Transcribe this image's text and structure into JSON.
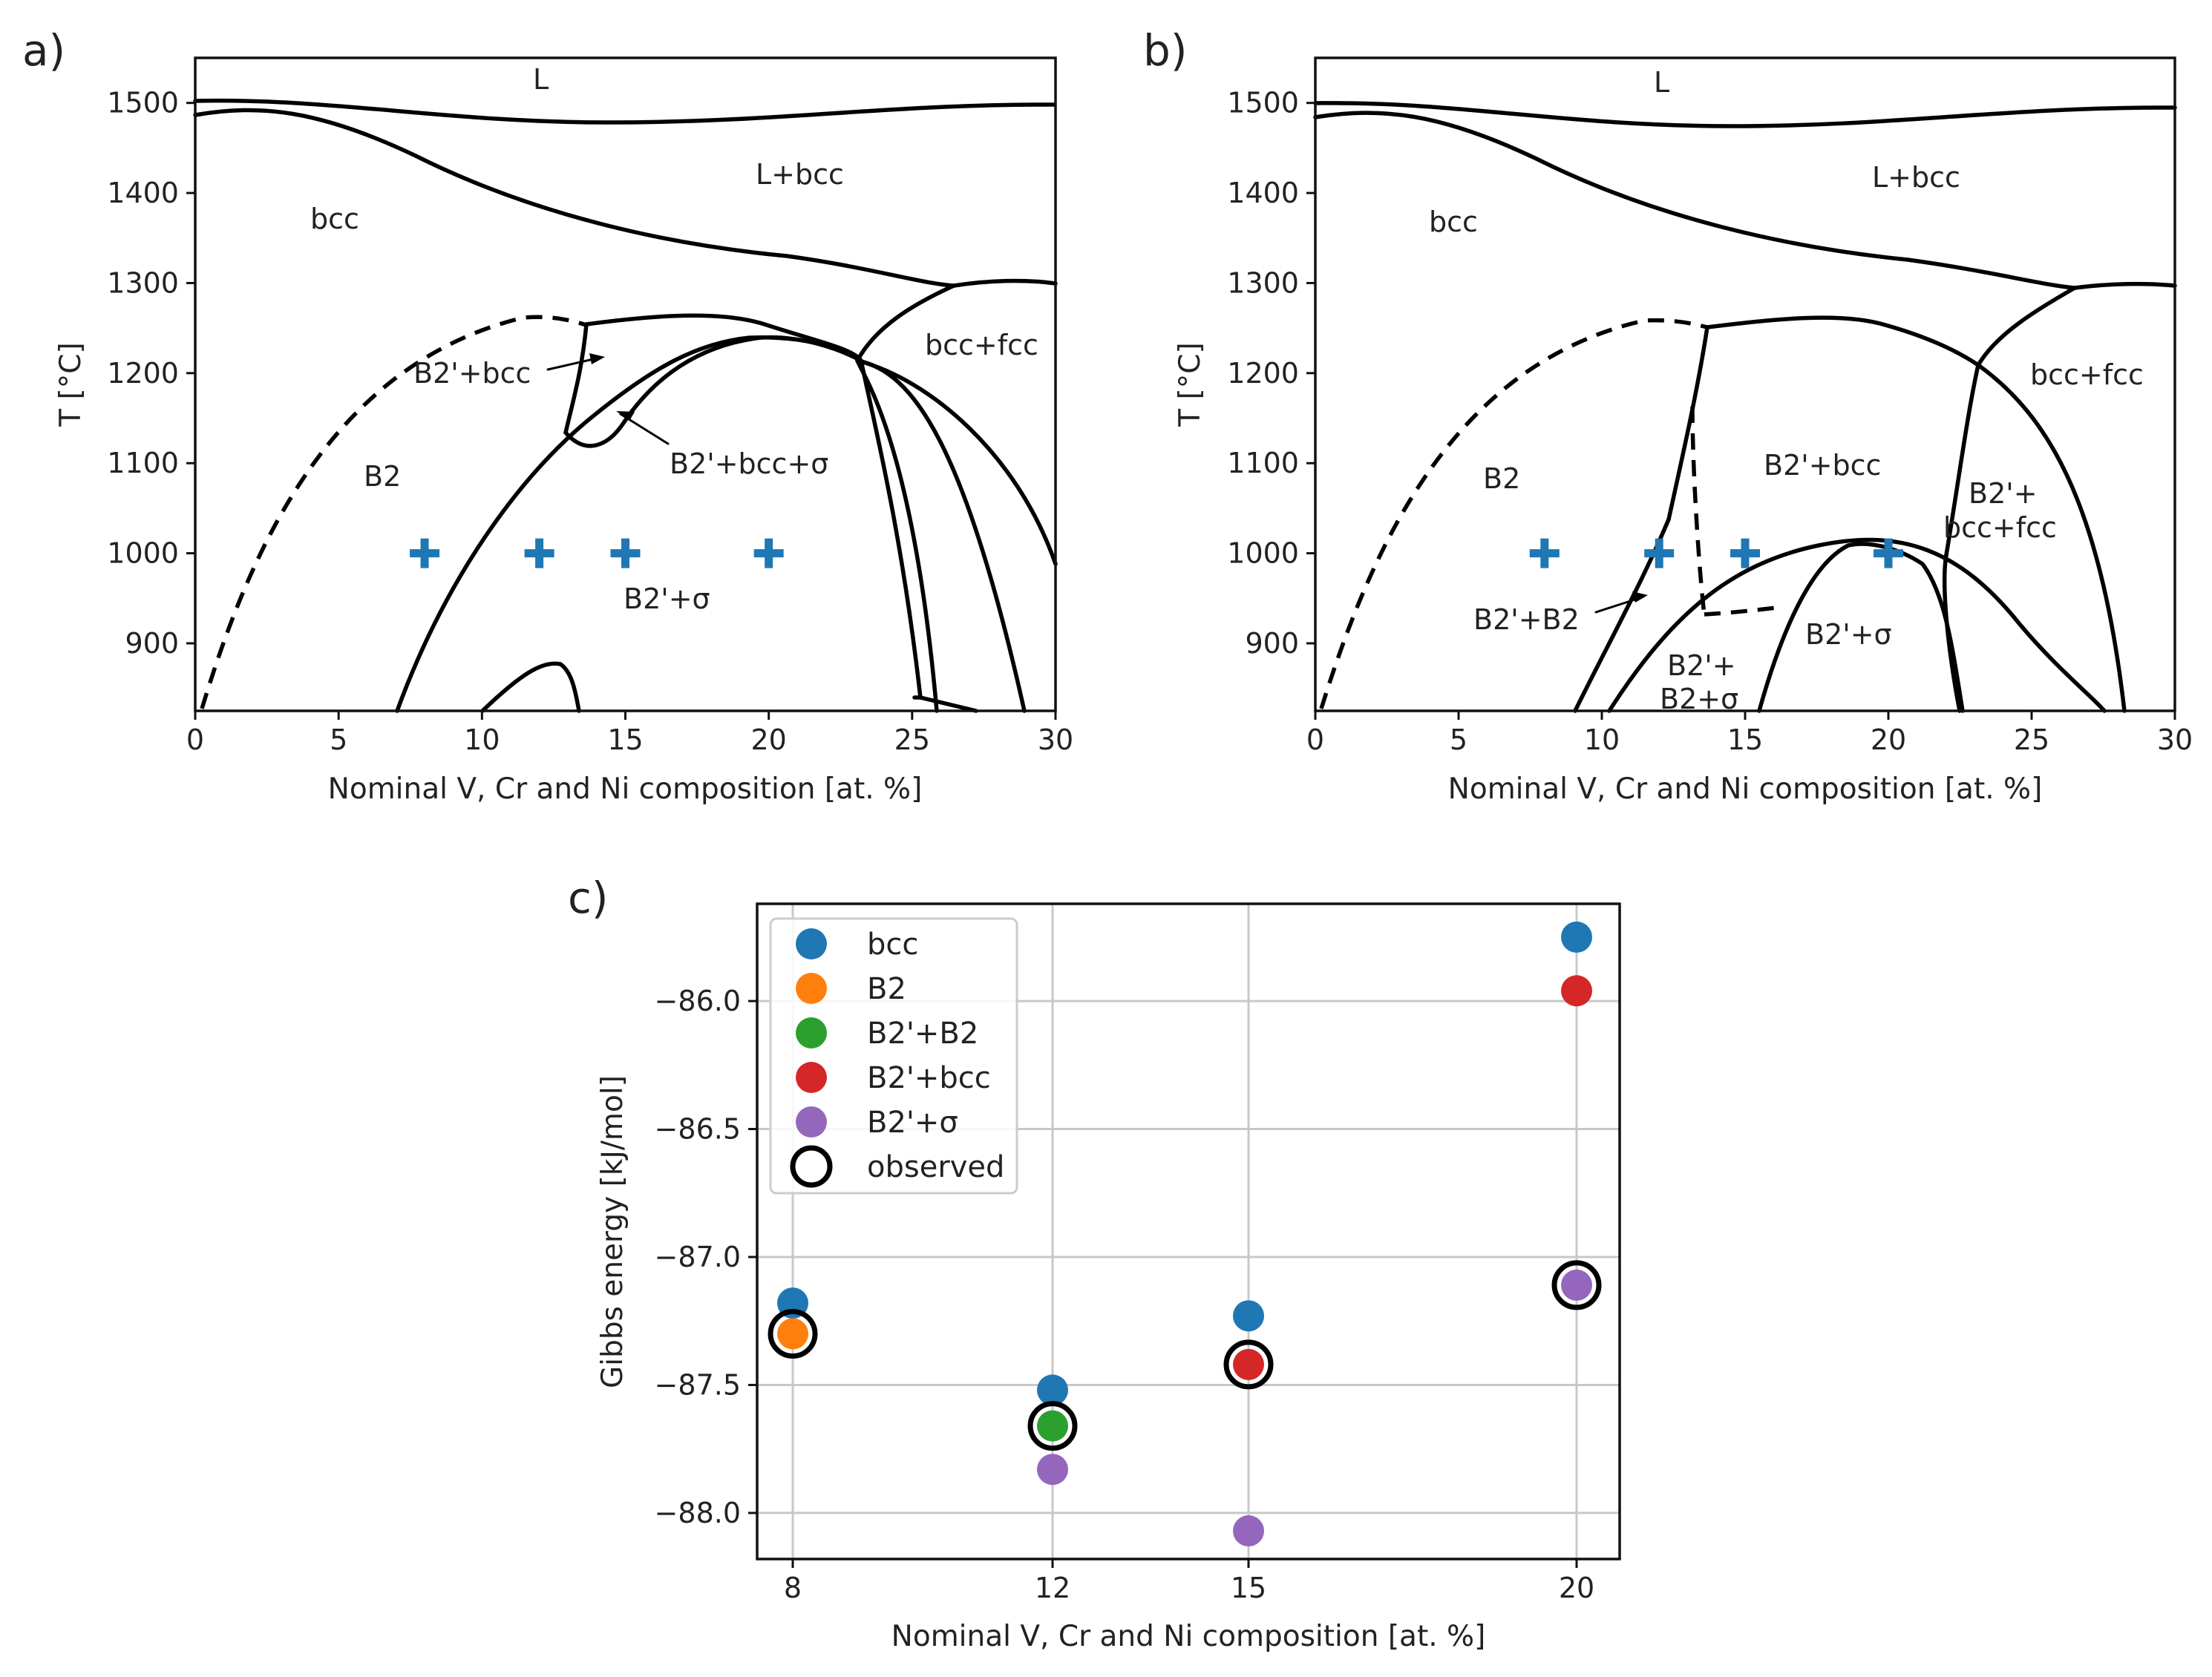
{
  "chart_data": [
    {
      "type": "line",
      "panel_label": "a)",
      "xlabel": "Nominal V, Cr and Ni composition [at. %]",
      "ylabel": "T [°C]",
      "xlim": [
        0,
        30
      ],
      "ylim": [
        825,
        1550
      ],
      "x_ticks": [
        0,
        5,
        10,
        15,
        20,
        25,
        30
      ],
      "y_ticks": [
        900,
        1000,
        1100,
        1200,
        1300,
        1400,
        1500
      ],
      "region_labels": [
        "L",
        "L+bcc",
        "bcc",
        "bcc+fcc",
        "B2'+bcc",
        "B2",
        "B2'+bcc+σ",
        "B2'+σ"
      ],
      "markers": {
        "marker": "+",
        "color": "#1f77b4",
        "x": [
          8,
          12,
          15,
          20
        ],
        "y": [
          1000,
          1000,
          1000,
          1000
        ]
      }
    },
    {
      "type": "line",
      "panel_label": "b)",
      "xlabel": "Nominal V, Cr and Ni composition [at. %]",
      "ylabel": "T [°C]",
      "xlim": [
        0,
        30
      ],
      "ylim": [
        825,
        1550
      ],
      "x_ticks": [
        0,
        5,
        10,
        15,
        20,
        25,
        30
      ],
      "y_ticks": [
        900,
        1000,
        1100,
        1200,
        1300,
        1400,
        1500
      ],
      "region_labels": [
        "L",
        "L+bcc",
        "bcc",
        "bcc+fcc",
        "B2",
        "B2'+bcc",
        "B2'+",
        "bcc+fcc",
        "B2'+B2",
        "B2'+σ",
        "B2'+",
        "B2+σ"
      ],
      "markers": {
        "marker": "+",
        "color": "#1f77b4",
        "x": [
          8,
          12,
          15,
          20
        ],
        "y": [
          1000,
          1000,
          1000,
          1000
        ]
      }
    },
    {
      "type": "scatter",
      "panel_label": "c)",
      "xlabel": "Nominal V, Cr and Ni composition [at. %]",
      "ylabel": "Gibbs energy [kJ/mol]",
      "categories": [
        "8",
        "12",
        "15",
        "20"
      ],
      "ylim": [
        -88.18,
        -85.62
      ],
      "y_ticks": [
        "−88.0",
        "−87.5",
        "−87.0",
        "−86.5",
        "−86.0"
      ],
      "grid": true,
      "legend_position": "upper-left",
      "series": [
        {
          "name": "bcc",
          "color": "#1f77b4",
          "values": [
            -87.18,
            -87.52,
            -87.23,
            -85.75
          ]
        },
        {
          "name": "B2",
          "color": "#ff7f0e",
          "values": [
            -87.3,
            null,
            null,
            null
          ]
        },
        {
          "name": "B2'+B2",
          "color": "#2ca02c",
          "values": [
            null,
            -87.66,
            null,
            null
          ]
        },
        {
          "name": "B2'+bcc",
          "color": "#d62728",
          "values": [
            null,
            null,
            -87.42,
            -85.96
          ]
        },
        {
          "name": "B2'+σ",
          "color": "#9467bd",
          "values": [
            null,
            -87.83,
            -88.07,
            -87.11
          ]
        },
        {
          "name": "observed",
          "color": "#000000",
          "marker": "open-circle",
          "values": [
            -87.3,
            -87.66,
            -87.42,
            -87.11
          ]
        }
      ]
    }
  ]
}
